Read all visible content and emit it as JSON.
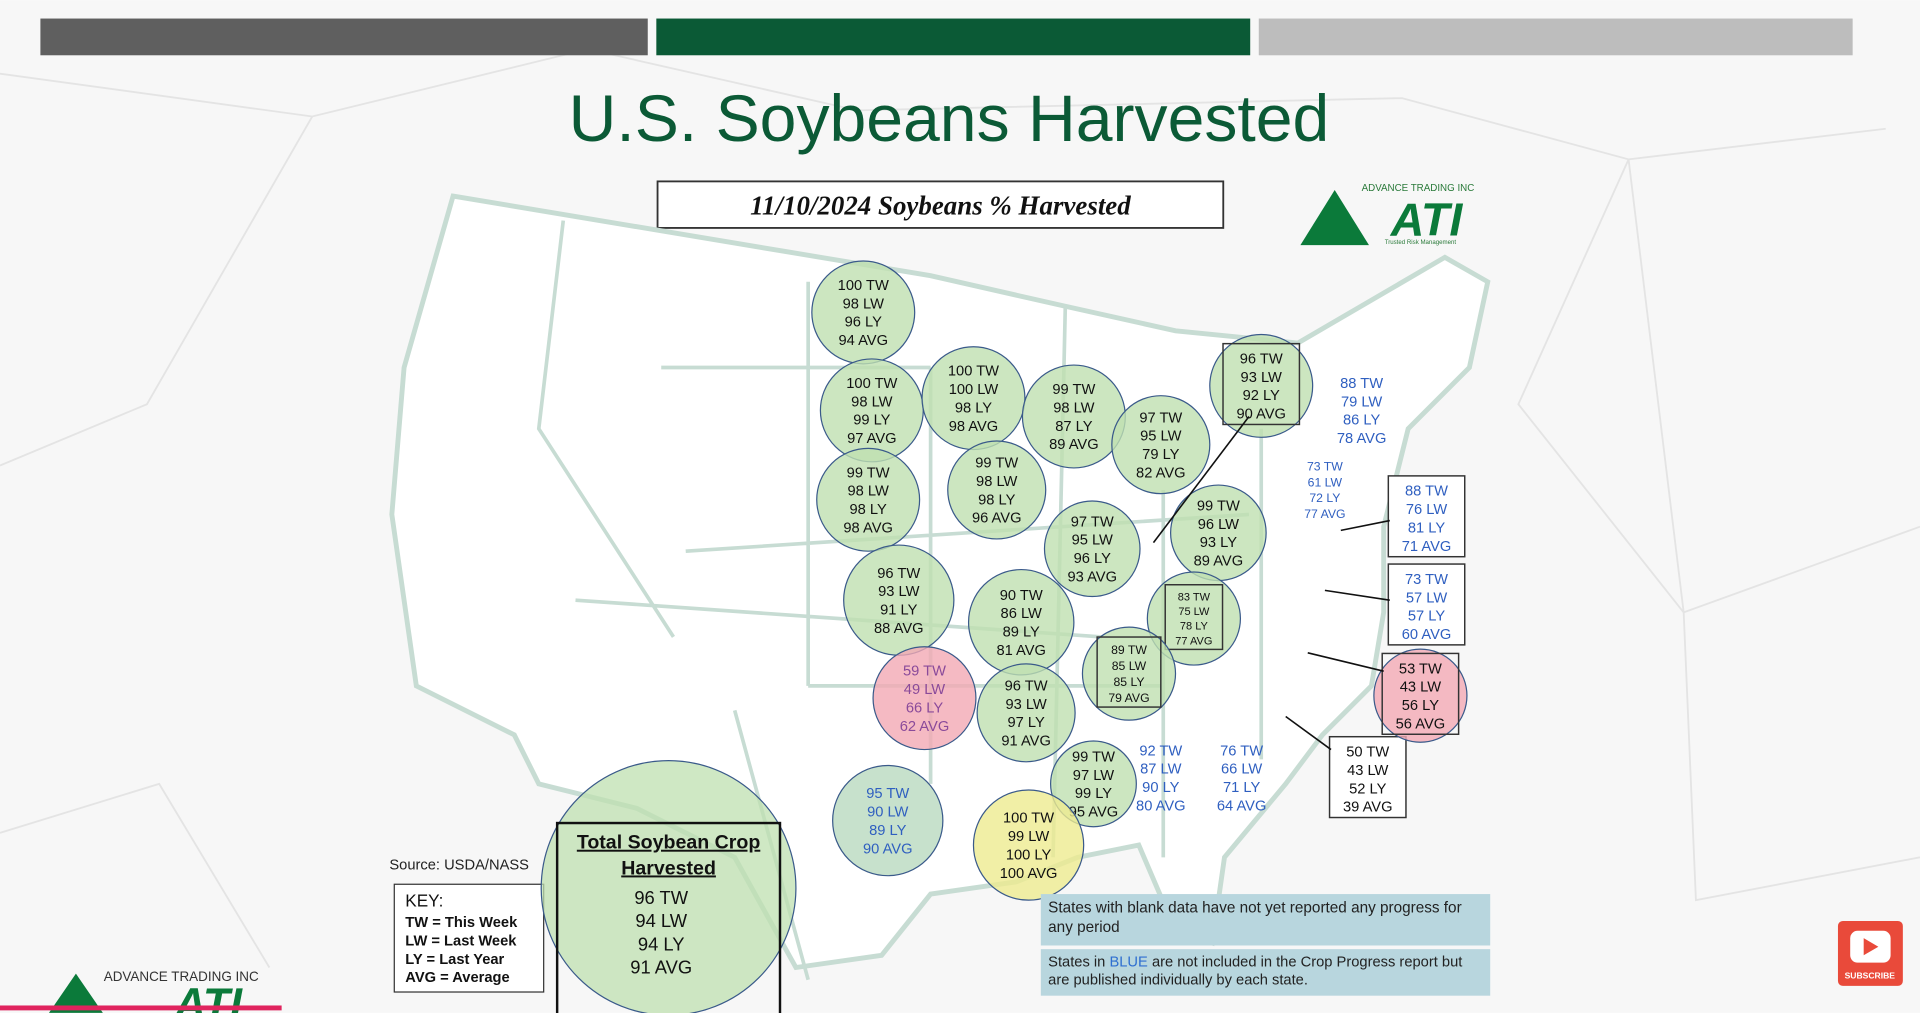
{
  "header": {
    "title": "U.S. Soybeans Harvested",
    "subtitle": "11/10/2024 Soybeans % Harvested"
  },
  "logo": {
    "company": "ADVANCE TRADING INC",
    "mark": "ATI",
    "tagline": "Trusted Risk Management"
  },
  "states": [
    {
      "lines": [
        "100 TW",
        "98 LW",
        "96 LY",
        "94 AVG"
      ]
    },
    {
      "lines": [
        "100 TW",
        "98 LW",
        "99 LY",
        "97 AVG"
      ]
    },
    {
      "lines": [
        "100 TW",
        "100 LW",
        "98 LY",
        "98 AVG"
      ]
    },
    {
      "lines": [
        "99 TW",
        "98 LW",
        "87 LY",
        "89 AVG"
      ]
    },
    {
      "lines": [
        "97 TW",
        "95 LW",
        "79 LY",
        "82 AVG"
      ]
    },
    {
      "lines": [
        "96 TW",
        "93 LW",
        "92 LY",
        "90 AVG"
      ]
    },
    {
      "lines": [
        "99 TW",
        "98 LW",
        "98 LY",
        "98 AVG"
      ]
    },
    {
      "lines": [
        "99 TW",
        "98 LW",
        "98 LY",
        "96 AVG"
      ]
    },
    {
      "lines": [
        "97 TW",
        "95 LW",
        "96 LY",
        "93 AVG"
      ]
    },
    {
      "lines": [
        "99 TW",
        "96 LW",
        "93 LY",
        "89 AVG"
      ]
    },
    {
      "lines": [
        "96 TW",
        "93 LW",
        "91 LY",
        "88 AVG"
      ]
    },
    {
      "lines": [
        "90 TW",
        "86 LW",
        "89 LY",
        "81 AVG"
      ]
    },
    {
      "lines": [
        "83 TW",
        "75 LW",
        "78 LY",
        "77 AVG"
      ]
    },
    {
      "lines": [
        "89 TW",
        "85 LW",
        "85 LY",
        "79 AVG"
      ]
    },
    {
      "lines": [
        "59 TW",
        "49 LW",
        "66 LY",
        "62 AVG"
      ]
    },
    {
      "lines": [
        "96 TW",
        "93 LW",
        "97 LY",
        "91 AVG"
      ]
    },
    {
      "lines": [
        "99 TW",
        "97 LW",
        "99 LY",
        "95 AVG"
      ]
    },
    {
      "lines": [
        "95 TW",
        "90 LW",
        "89 LY",
        "90 AVG"
      ]
    },
    {
      "lines": [
        "100 TW",
        "99 LW",
        "100 LY",
        "100 AVG"
      ]
    },
    {
      "lines": [
        "92 TW",
        "87 LW",
        "90 LY",
        "80 AVG"
      ]
    },
    {
      "lines": [
        "76 TW",
        "66 LW",
        "71 LY",
        "64 AVG"
      ]
    },
    {
      "lines": [
        "50 TW",
        "43 LW",
        "52 LY",
        "39 AVG"
      ]
    },
    {
      "lines": [
        "53 TW",
        "43 LW",
        "56 LY",
        "56 AVG"
      ]
    },
    {
      "lines": [
        "73 TW",
        "57 LW",
        "57 LY",
        "60 AVG"
      ]
    },
    {
      "lines": [
        "88 TW",
        "76 LW",
        "81 LY",
        "71 AVG"
      ]
    },
    {
      "lines": [
        "73 TW",
        "61 LW",
        "72 LY",
        "77 AVG"
      ]
    },
    {
      "lines": [
        "88 TW",
        "79 LW",
        "86 LY",
        "78 AVG"
      ]
    }
  ],
  "total": {
    "title_1": "Total Soybean Crop",
    "title_2": "Harvested",
    "lines": [
      "96 TW",
      "94 LW",
      "94 LY",
      "91 AVG"
    ]
  },
  "source": "Source: USDA/NASS",
  "key": {
    "title": "KEY:",
    "lines": [
      "TW = This Week",
      "LW = Last Week",
      "LY = Last Year",
      "AVG = Average"
    ]
  },
  "notes": {
    "blank": "States with blank data have not yet reported any progress for any period",
    "blue_before": "States in",
    "blue_word": "BLUE",
    "blue_after": "are not included in the Crop Progress report but are published individually by each state."
  },
  "subscribe": "SUBSCRIBE"
}
